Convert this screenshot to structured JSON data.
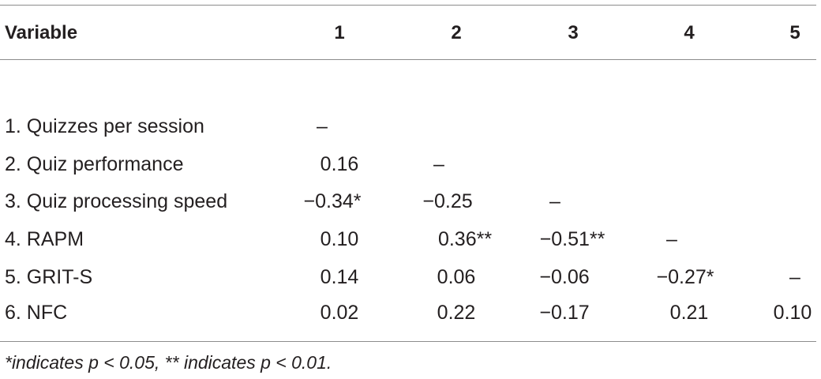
{
  "table": {
    "headers": [
      "Variable",
      "1",
      "2",
      "3",
      "4",
      "5"
    ],
    "rows": [
      {
        "label": "1. Quizzes per session",
        "cells": [
          "–",
          "",
          "",
          "",
          ""
        ]
      },
      {
        "label": "2. Quiz performance",
        "cells": [
          "0.16",
          "–",
          "",
          "",
          ""
        ]
      },
      {
        "label": "3. Quiz processing speed",
        "cells": [
          "−0.34*",
          "−0.25",
          "–",
          "",
          ""
        ]
      },
      {
        "label": "4. RAPM",
        "cells": [
          "0.10",
          "0.36**",
          "−0.51**",
          "–",
          ""
        ]
      },
      {
        "label": "5. GRIT-S",
        "cells": [
          "0.14",
          "0.06",
          "−0.06",
          "−0.27*",
          "–"
        ]
      },
      {
        "label": "6. NFC",
        "cells": [
          "0.02",
          "0.22",
          "−0.17",
          "0.21",
          "0.10"
        ]
      }
    ],
    "footnote": "*indicates p < 0.05, ** indicates p < 0.01."
  }
}
